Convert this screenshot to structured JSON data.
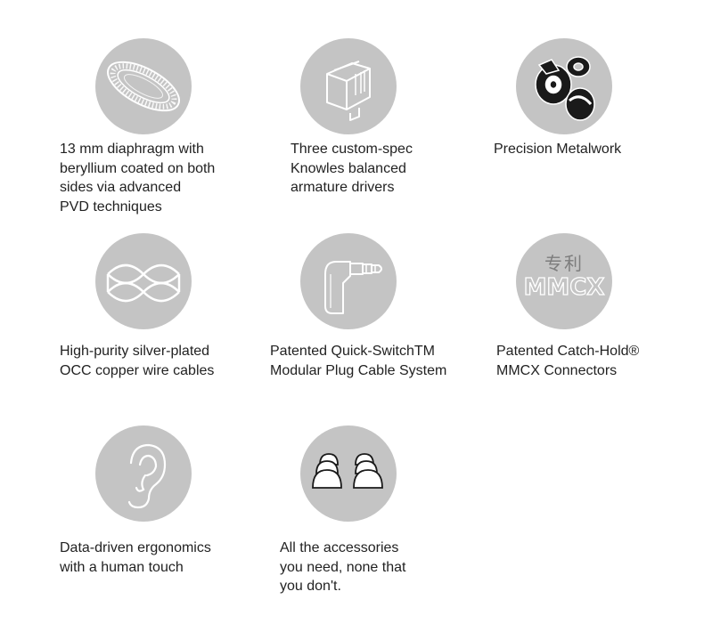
{
  "features": [
    {
      "id": "diaphragm",
      "icon": "diaphragm-icon",
      "lines": [
        "13 mm diaphragm with",
        "beryllium coated on both",
        "sides via advanced",
        "PVD techniques"
      ]
    },
    {
      "id": "drivers",
      "icon": "balanced-armature-driver-icon",
      "lines": [
        "Three custom-spec",
        "Knowles balanced",
        "armature drivers"
      ]
    },
    {
      "id": "metalwork",
      "icon": "metal-shell-icon",
      "lines": [
        "Precision Metalwork"
      ]
    },
    {
      "id": "cable",
      "icon": "braided-cable-icon",
      "lines": [
        "High-purity silver-plated",
        "OCC copper wire cables"
      ]
    },
    {
      "id": "plug",
      "icon": "audio-plug-icon",
      "lines": [
        "Patented Quick-SwitchTM",
        "Modular Plug Cable System"
      ]
    },
    {
      "id": "mmcx",
      "icon": "mmcx-patent-icon",
      "icon_text": {
        "cn": "专利",
        "en": "MMCX"
      },
      "lines": [
        "Patented Catch-Hold®",
        "MMCX Connectors"
      ]
    },
    {
      "id": "ergonomics",
      "icon": "ear-icon",
      "lines": [
        "Data-driven ergonomics",
        "with a human touch"
      ]
    },
    {
      "id": "accessories",
      "icon": "ear-tips-icon",
      "lines": [
        "All the accessories",
        "you need, none that",
        "you don't."
      ]
    }
  ],
  "colors": {
    "circle": "#c4c4c4",
    "text": "#222222",
    "icon_line": "#ffffff",
    "icon_dark": "#1a1a1a"
  }
}
